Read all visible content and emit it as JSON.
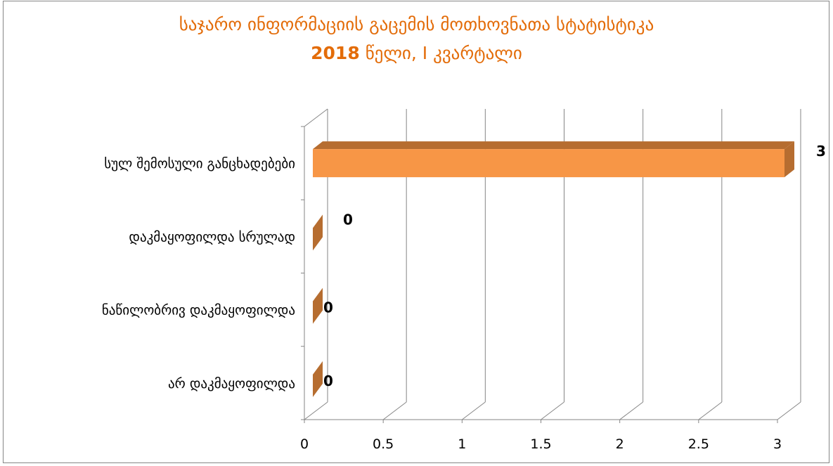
{
  "chart_data": {
    "type": "bar",
    "orientation": "horizontal",
    "style": "3d",
    "title": "საჯარო ინფორმაციის გაცემის მოთხოვნათა სტატისტიკა",
    "subtitle_year": "2018",
    "subtitle_rest": "წელი,  I კვარტალი",
    "categories": [
      "სულ შემოსული განცხადებები",
      "დაკმაყოფილდა სრულად",
      "ნაწილობრივ დაკმაყოფილდა",
      "არ დაკმაყოფილდა"
    ],
    "values": [
      3,
      0,
      0,
      0
    ],
    "data_labels": [
      "3",
      "0",
      "0",
      "0"
    ],
    "xlim": [
      0,
      3
    ],
    "xticks": [
      "0",
      "0.5",
      "1",
      "1.5",
      "2",
      "2.5",
      "3"
    ],
    "grid": true,
    "legend": "none",
    "colors": {
      "bar_front": "#f79646",
      "bar_side": "#b66d30",
      "bar_zero": "#b66d30",
      "title": "#e36c09",
      "grid": "#868686",
      "text": "#000000"
    }
  }
}
